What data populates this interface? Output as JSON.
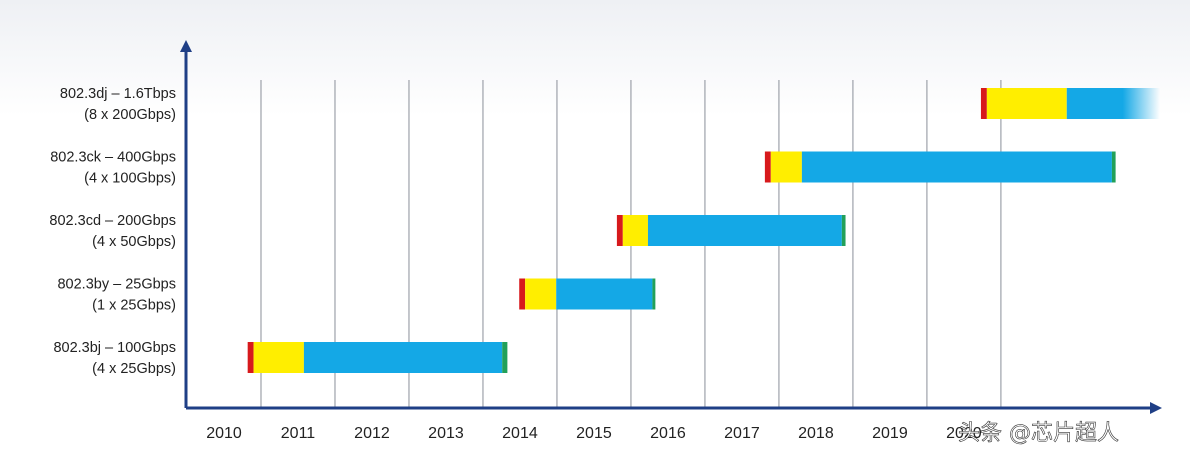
{
  "chart_data": {
    "type": "timeline",
    "rows": [
      {
        "label": [
          "802.3dj – 1.6Tbps",
          "(8 x 200Gbps)"
        ],
        "start": 2020.73,
        "durations": [
          0.08,
          1.08,
          1.26,
          null
        ]
      },
      {
        "label": [
          "802.3ck – 400Gbps",
          "(4 x 100Gbps)"
        ],
        "start": 2017.81,
        "durations": [
          0.08,
          0.42,
          4.19,
          0.05
        ]
      },
      {
        "label": [
          "802.3cd – 200Gbps",
          "(4 x 50Gbps)"
        ],
        "start": 2015.81,
        "durations": [
          0.08,
          0.34,
          2.62,
          0.05
        ]
      },
      {
        "label": [
          "802.3by – 25Gbps",
          "(1 x 25Gbps)"
        ],
        "start": 2014.49,
        "durations": [
          0.08,
          0.42,
          1.3,
          0.04
        ]
      },
      {
        "label": [
          "802.3bj – 100Gbps",
          "(4 x 25Gbps)"
        ],
        "start": 2010.82,
        "durations": [
          0.08,
          0.68,
          2.68,
          0.07
        ]
      }
    ],
    "phase_colors": [
      "#d7191c",
      "#ffee00",
      "#14a8e6",
      "#22a05a"
    ],
    "categories": [
      "2010",
      "2011",
      "2012",
      "2013",
      "2014",
      "2015",
      "2016",
      "2017",
      "2018",
      "2019",
      "2020"
    ],
    "xlim": [
      2010,
      2023.15
    ],
    "xticks": [
      2011,
      2012,
      2013,
      2014,
      2015,
      2016,
      2017,
      2018,
      2019,
      2020,
      2021
    ],
    "grid": true,
    "watermark": "头条 @芯片超人"
  }
}
